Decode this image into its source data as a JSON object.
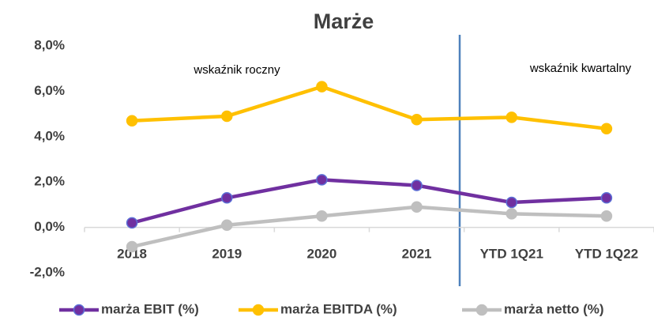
{
  "chart_data": {
    "type": "line",
    "title": "Marże",
    "annotations": [
      "wskaźnik roczny",
      "wskaźnik kwartalny"
    ],
    "categories": [
      "2018",
      "2019",
      "2020",
      "2021",
      "YTD 1Q21",
      "YTD 1Q22"
    ],
    "series": [
      {
        "name": "marża EBIT (%)",
        "color": "#7030a0",
        "values": [
          0.2,
          1.3,
          2.1,
          1.85,
          1.1,
          1.3
        ]
      },
      {
        "name": "marża EBITDA (%)",
        "color": "#ffc000",
        "values": [
          4.7,
          4.9,
          6.2,
          4.75,
          4.85,
          4.35
        ]
      },
      {
        "name": "marża netto (%)",
        "color": "#bfbfbf",
        "values": [
          -0.85,
          0.1,
          0.5,
          0.9,
          0.6,
          0.5
        ]
      }
    ],
    "ylim": [
      -2.8,
      8.8
    ],
    "yticks": [
      {
        "value": -2,
        "label": "-2,0%"
      },
      {
        "value": 0,
        "label": "0,0%"
      },
      {
        "value": 2,
        "label": "2,0%"
      },
      {
        "value": 4,
        "label": "4,0%"
      },
      {
        "value": 6,
        "label": "6,0%"
      },
      {
        "value": 8,
        "label": "8,0%"
      }
    ],
    "legend": "bottom"
  }
}
